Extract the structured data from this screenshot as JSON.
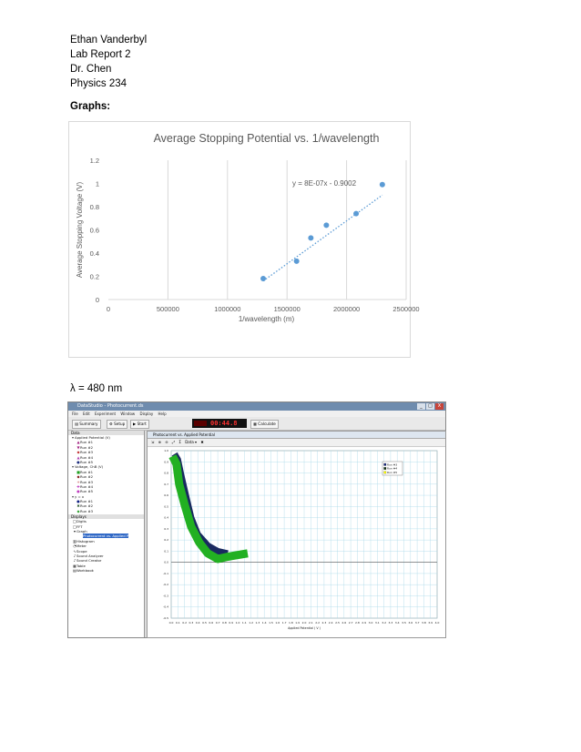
{
  "header": {
    "lines": [
      "Ethan Vanderbyl",
      "Lab Report 2",
      "Dr. Chen",
      "Physics 234"
    ]
  },
  "section_title": "Graphs:",
  "chart_data": {
    "type": "scatter",
    "title": "Average Stopping Potential vs. 1/wavelength",
    "xlabel": "1/wavelength (m)",
    "ylabel": "Average Stopping Voltage (V)",
    "xlim": [
      0,
      2500000
    ],
    "ylim": [
      0,
      1.2
    ],
    "xticks": [
      "0",
      "500000",
      "1000000",
      "1500000",
      "2000000",
      "2500000"
    ],
    "yticks": [
      "0",
      "0.2",
      "0.4",
      "0.6",
      "0.8",
      "1",
      "1.2"
    ],
    "grid": "vertical",
    "color": "#5b9bd5",
    "points": [
      {
        "x": 1300000,
        "y": 0.18
      },
      {
        "x": 1580000,
        "y": 0.33
      },
      {
        "x": 1700000,
        "y": 0.53
      },
      {
        "x": 1830000,
        "y": 0.64
      },
      {
        "x": 2080000,
        "y": 0.74
      },
      {
        "x": 2300000,
        "y": 0.99
      }
    ],
    "trendline": {
      "label": "y = 8E-07x - 0.9002",
      "slope": 8e-07,
      "intercept": -0.9002,
      "x_range": [
        1300000,
        2300000
      ],
      "style": "dotted"
    }
  },
  "lambda_label": "λ = 480 nm",
  "screenshot": {
    "title": "DataStudio - Photocurrent.ds",
    "window_controls": [
      "_",
      "□",
      "X"
    ],
    "menu": [
      "File",
      "Edit",
      "Experiment",
      "Window",
      "Display",
      "Help"
    ],
    "toolbar": {
      "summary": "Summary",
      "setup": "Setup",
      "start": "Start",
      "timer": "00:44.8",
      "calculate": "Calculate"
    },
    "tree_header": "Data",
    "tree_items": [
      {
        "sym": "▾",
        "label": "Applied Potential (V)",
        "color": "#444"
      },
      {
        "sym": "▲",
        "label": "Run #1",
        "color": "#a02080"
      },
      {
        "sym": "▼",
        "label": "Run #2",
        "color": "#a02080"
      },
      {
        "sym": "◆",
        "label": "Run #3",
        "color": "#c03030"
      },
      {
        "sym": "▲",
        "label": "Run #4",
        "color": "#b040b0"
      },
      {
        "sym": "●",
        "label": "Run #5",
        "color": "#203080"
      },
      {
        "sym": "▾",
        "label": "Voltage, ChB (V)",
        "color": "#444"
      },
      {
        "sym": "■",
        "label": "Run #1",
        "color": "#20a020"
      },
      {
        "sym": "◆",
        "label": "Run #2",
        "color": "#801010"
      },
      {
        "sym": "+",
        "label": "Run #3",
        "color": "#c04040"
      },
      {
        "sym": "✚",
        "label": "Run #4",
        "color": "#c040c0"
      },
      {
        "sym": "●",
        "label": "Run #5",
        "color": "#c040c0"
      },
      {
        "sym": "▾",
        "label": "y = x",
        "color": "#444"
      },
      {
        "sym": "●",
        "label": "Run #1",
        "color": "#102080"
      },
      {
        "sym": "✖",
        "label": "Run #2",
        "color": "#205020"
      },
      {
        "sym": "◆",
        "label": "Run #3",
        "color": "#30a030"
      }
    ],
    "display_header": "Displays",
    "display_items": [
      {
        "sym": "□",
        "label": "Digits"
      },
      {
        "sym": "□",
        "label": "FFT"
      },
      {
        "sym": "▾",
        "label": "Graph"
      },
      {
        "sym": " ",
        "label": "Photocurrent vs. Applied P",
        "selected": true
      },
      {
        "sym": "▥",
        "label": "Histogram"
      },
      {
        "sym": "◔",
        "label": "Meter"
      },
      {
        "sym": "∿",
        "label": "Scope"
      },
      {
        "sym": "♪",
        "label": "Sound Analyzer"
      },
      {
        "sym": "♪",
        "label": "Sound Creator"
      },
      {
        "sym": "▦",
        "label": "Table"
      },
      {
        "sym": "▤",
        "label": "Workbook"
      }
    ],
    "graph": {
      "window_title": "Photocurrent vs. Applied Potential",
      "tools": [
        "Σ",
        "Data ▾"
      ],
      "y_ticks": [
        "1.0",
        "0.9",
        "0.8",
        "0.7",
        "0.6",
        "0.5",
        "0.4",
        "0.3",
        "0.2",
        "0.1",
        "0.0",
        "-0.1",
        "-0.2",
        "-0.3",
        "-0.4",
        "-0.5"
      ],
      "x_ticks": [
        "0.0",
        "0.1",
        "0.2",
        "0.3",
        "0.4",
        "0.5",
        "0.6",
        "0.7",
        "0.8",
        "0.9",
        "1.0",
        "1.1",
        "1.2",
        "1.3",
        "1.4",
        "1.5",
        "1.6",
        "1.7",
        "1.8",
        "1.9",
        "2.0",
        "2.1",
        "2.2",
        "2.3",
        "2.4",
        "2.5",
        "2.6",
        "2.7",
        "2.8",
        "2.9",
        "3.0",
        "3.1",
        "3.2",
        "3.3",
        "3.4",
        "3.5",
        "3.6",
        "3.7",
        "3.8",
        "3.9",
        "4.0"
      ],
      "x_label": "Applied Potential ( V )",
      "legend": [
        "Run #3",
        "Run #4",
        "Run #5"
      ],
      "legend_colors": [
        "#1a2a80",
        "#103010",
        "#ffff00"
      ]
    }
  }
}
